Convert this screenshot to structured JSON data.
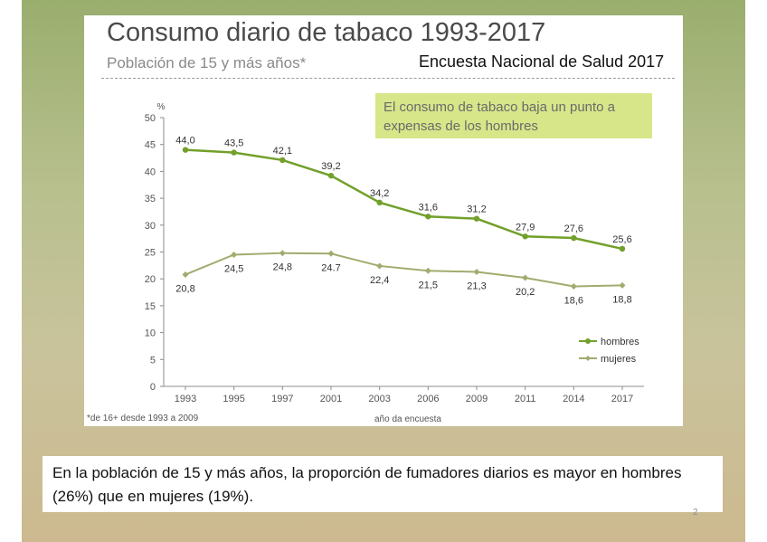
{
  "slide": {
    "title": "Consumo diario de tabaco 1993-2017",
    "subtitle": "Población de 15 y más años*",
    "survey_label": "Encuesta Nacional de Salud 2017",
    "note": "El consumo de tabaco baja un punto a expensas de los hombres",
    "footnote": "*de 16+ desde 1993 a 2009",
    "caption": "En la población de 15 y más años, la proporción de fumadores diarios es mayor en hombres (26%) que en mujeres (19%).",
    "page_number": "2"
  },
  "colors": {
    "hombres": "#72a02b",
    "mujeres": "#a2ab6e",
    "note_bg": "#d8e68a"
  },
  "chart_data": {
    "type": "line",
    "title": "Consumo diario de tabaco 1993-2017",
    "xlabel": "año da encuesta",
    "ylabel": "%",
    "ylim": [
      0,
      50
    ],
    "yticks": [
      0,
      5,
      10,
      15,
      20,
      25,
      30,
      35,
      40,
      45,
      50
    ],
    "x": [
      1993,
      1995,
      1997,
      2001,
      2003,
      2006,
      2009,
      2011,
      2014,
      2017
    ],
    "series": [
      {
        "name": "hombres",
        "values": [
          44.0,
          43.5,
          42.1,
          39.2,
          34.2,
          31.6,
          31.2,
          27.9,
          27.6,
          25.6
        ],
        "labels": [
          "44,0",
          "43,5",
          "42,1",
          "39,2",
          "34,2",
          "31,6",
          "31,2",
          "27,9",
          "27,6",
          "25,6"
        ]
      },
      {
        "name": "mujeres",
        "values": [
          20.8,
          24.5,
          24.8,
          24.7,
          22.4,
          21.5,
          21.3,
          20.2,
          18.6,
          18.8
        ],
        "labels": [
          "20,8",
          "24,5",
          "24,8",
          "24.7",
          "22,4",
          "21,5",
          "21,3",
          "20,2",
          "18,6",
          "18,8"
        ]
      }
    ],
    "legend": [
      "hombres",
      "mujeres"
    ],
    "legend_position": "bottom-right",
    "grid": false
  }
}
